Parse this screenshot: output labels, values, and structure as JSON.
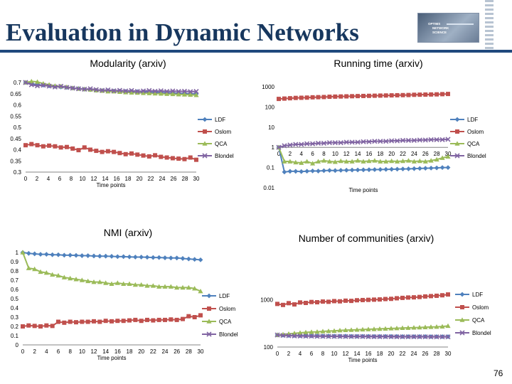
{
  "slide": {
    "title": "Evaluation in Dynamic Networks",
    "page_number": "76",
    "logo_lines": [
      "OPTIMS",
      "NETWORK",
      "SCIENCE"
    ]
  },
  "colors": {
    "LDF": "#4f81bd",
    "Oslom": "#c0504d",
    "QCA": "#9bbb59",
    "Blondel": "#8064a2",
    "title": "#17375e",
    "rule": "#1f497d"
  },
  "legend_labels": [
    "LDF",
    "Oslom",
    "QCA",
    "Blondel"
  ],
  "x_ticks": [
    "0",
    "2",
    "4",
    "6",
    "8",
    "10",
    "12",
    "14",
    "16",
    "18",
    "20",
    "22",
    "24",
    "26",
    "28",
    "30"
  ],
  "chart_data": [
    {
      "type": "line",
      "title": "Modularity (arxiv)",
      "xlabel": "Time points",
      "ylabel": "",
      "x_range": [
        0,
        30
      ],
      "y_scale": "linear",
      "ylim": [
        0.3,
        0.7
      ],
      "y_ticks": [
        "0.7",
        "0.65",
        "0.6",
        "0.55",
        "0.5",
        "0.45",
        "0.4",
        "0.35",
        "0.3"
      ],
      "y_tick_values": [
        0.7,
        0.65,
        0.6,
        0.55,
        0.5,
        0.45,
        0.4,
        0.35,
        0.3
      ],
      "series": [
        {
          "name": "LDF",
          "values": [
            0.7,
            0.695,
            0.69,
            0.688,
            0.685,
            0.683,
            0.68,
            0.678,
            0.675,
            0.673,
            0.67,
            0.668,
            0.665,
            0.664,
            0.663,
            0.662,
            0.661,
            0.66,
            0.66,
            0.659,
            0.658,
            0.657,
            0.656,
            0.655,
            0.654,
            0.653,
            0.652,
            0.651,
            0.65,
            0.649
          ]
        },
        {
          "name": "Oslom",
          "values": [
            0.42,
            0.425,
            0.42,
            0.415,
            0.418,
            0.415,
            0.41,
            0.412,
            0.405,
            0.398,
            0.41,
            0.4,
            0.395,
            0.39,
            0.393,
            0.39,
            0.385,
            0.38,
            0.383,
            0.378,
            0.374,
            0.37,
            0.375,
            0.368,
            0.365,
            0.362,
            0.36,
            0.358,
            0.365,
            0.355
          ]
        },
        {
          "name": "QCA",
          "values": [
            0.7,
            0.705,
            0.703,
            0.695,
            0.69,
            0.685,
            0.683,
            0.68,
            0.675,
            0.672,
            0.67,
            0.668,
            0.665,
            0.663,
            0.66,
            0.66,
            0.658,
            0.656,
            0.655,
            0.654,
            0.653,
            0.652,
            0.651,
            0.65,
            0.649,
            0.648,
            0.647,
            0.646,
            0.645,
            0.644
          ]
        },
        {
          "name": "Blondel",
          "values": [
            0.7,
            0.69,
            0.685,
            0.688,
            0.684,
            0.68,
            0.683,
            0.678,
            0.675,
            0.672,
            0.67,
            0.672,
            0.668,
            0.665,
            0.667,
            0.663,
            0.665,
            0.662,
            0.664,
            0.66,
            0.662,
            0.664,
            0.661,
            0.663,
            0.66,
            0.662,
            0.66,
            0.661,
            0.659,
            0.66
          ]
        }
      ]
    },
    {
      "type": "line",
      "title": "Running time (arxiv)",
      "xlabel": "Time points",
      "ylabel": "",
      "x_range": [
        0,
        30
      ],
      "y_scale": "log",
      "ylim": [
        0.01,
        1000
      ],
      "y_ticks": [
        "1000",
        "100",
        "10",
        "1",
        "0.1",
        "0.01"
      ],
      "y_tick_values": [
        1000,
        100,
        10,
        1,
        0.1,
        0.01
      ],
      "series": [
        {
          "name": "LDF",
          "values": [
            1,
            0.06,
            0.065,
            0.065,
            0.063,
            0.066,
            0.068,
            0.067,
            0.07,
            0.072,
            0.071,
            0.073,
            0.074,
            0.075,
            0.076,
            0.077,
            0.078,
            0.079,
            0.08,
            0.081,
            0.082,
            0.083,
            0.085,
            0.086,
            0.088,
            0.09,
            0.092,
            0.094,
            0.096,
            0.1,
            0.1
          ]
        },
        {
          "name": "Oslom",
          "values": [
            250,
            260,
            270,
            280,
            285,
            290,
            300,
            305,
            310,
            320,
            325,
            330,
            335,
            340,
            345,
            350,
            355,
            360,
            365,
            370,
            375,
            380,
            385,
            390,
            400,
            405,
            410,
            415,
            420,
            430,
            440
          ]
        },
        {
          "name": "QCA",
          "values": [
            1,
            0.2,
            0.2,
            0.18,
            0.17,
            0.2,
            0.16,
            0.2,
            0.22,
            0.2,
            0.19,
            0.21,
            0.2,
            0.2,
            0.22,
            0.2,
            0.21,
            0.22,
            0.2,
            0.2,
            0.21,
            0.2,
            0.21,
            0.22,
            0.2,
            0.21,
            0.2,
            0.22,
            0.25,
            0.3,
            0.35
          ]
        },
        {
          "name": "Blondel",
          "values": [
            1,
            1.2,
            1.3,
            1.4,
            1.4,
            1.5,
            1.5,
            1.6,
            1.6,
            1.7,
            1.7,
            1.7,
            1.8,
            1.8,
            1.8,
            1.9,
            1.9,
            2.0,
            2.0,
            2.0,
            2.1,
            2.1,
            2.2,
            2.2,
            2.2,
            2.3,
            2.3,
            2.4,
            2.4,
            2.4,
            2.5
          ]
        }
      ]
    },
    {
      "type": "line",
      "title": "NMI (arxiv)",
      "xlabel": "Time points",
      "ylabel": "",
      "x_range": [
        0,
        30
      ],
      "y_scale": "linear",
      "ylim": [
        0,
        1
      ],
      "y_ticks": [
        "1",
        "0.9",
        "0.8",
        "0.7",
        "0.6",
        "0.5",
        "0.4",
        "0.3",
        "0.2",
        "0.1",
        "0"
      ],
      "y_tick_values": [
        1,
        0.9,
        0.8,
        0.7,
        0.6,
        0.5,
        0.4,
        0.3,
        0.2,
        0.1,
        0
      ],
      "series": [
        {
          "name": "LDF",
          "values": [
            1,
            0.99,
            0.985,
            0.98,
            0.98,
            0.975,
            0.975,
            0.97,
            0.97,
            0.968,
            0.965,
            0.965,
            0.962,
            0.96,
            0.96,
            0.958,
            0.955,
            0.955,
            0.952,
            0.95,
            0.95,
            0.948,
            0.945,
            0.945,
            0.942,
            0.94,
            0.94,
            0.935,
            0.93,
            0.925,
            0.92
          ]
        },
        {
          "name": "Oslom",
          "values": [
            0.2,
            0.21,
            0.205,
            0.2,
            0.21,
            0.205,
            0.25,
            0.24,
            0.25,
            0.245,
            0.25,
            0.25,
            0.255,
            0.25,
            0.26,
            0.255,
            0.26,
            0.26,
            0.265,
            0.27,
            0.26,
            0.27,
            0.265,
            0.27,
            0.27,
            0.275,
            0.27,
            0.28,
            0.31,
            0.3,
            0.32
          ]
        },
        {
          "name": "QCA",
          "values": [
            1,
            0.83,
            0.82,
            0.79,
            0.78,
            0.76,
            0.75,
            0.73,
            0.72,
            0.71,
            0.7,
            0.69,
            0.68,
            0.68,
            0.67,
            0.66,
            0.67,
            0.66,
            0.66,
            0.65,
            0.65,
            0.64,
            0.64,
            0.63,
            0.63,
            0.63,
            0.62,
            0.62,
            0.62,
            0.61,
            0.58
          ]
        }
      ]
    },
    {
      "type": "line",
      "title": "Number of communities (arxiv)",
      "xlabel": "Time points",
      "ylabel": "",
      "x_range": [
        0,
        30
      ],
      "y_scale": "log",
      "ylim": [
        100,
        3000
      ],
      "y_ticks": [
        "1000",
        "100"
      ],
      "y_tick_values": [
        1000,
        100
      ],
      "series": [
        {
          "name": "LDF",
          "values": [
            180,
            178,
            176,
            175,
            174,
            173,
            172,
            172,
            171,
            171,
            170,
            170,
            170,
            169,
            169,
            169,
            169,
            168,
            168,
            168,
            168,
            168,
            167,
            167,
            167,
            167,
            167,
            166,
            166,
            166,
            166
          ]
        },
        {
          "name": "Oslom",
          "values": [
            820,
            780,
            850,
            800,
            880,
            860,
            900,
            890,
            920,
            910,
            940,
            930,
            960,
            950,
            980,
            990,
            1000,
            1010,
            1020,
            1040,
            1050,
            1080,
            1100,
            1120,
            1130,
            1150,
            1180,
            1200,
            1220,
            1250,
            1300
          ]
        },
        {
          "name": "QCA",
          "values": [
            180,
            185,
            190,
            195,
            200,
            205,
            208,
            210,
            215,
            218,
            220,
            225,
            228,
            230,
            232,
            235,
            238,
            240,
            243,
            245,
            248,
            250,
            253,
            255,
            258,
            260,
            263,
            266,
            268,
            272,
            280
          ]
        },
        {
          "name": "Blondel",
          "values": [
            180,
            176,
            174,
            172,
            171,
            170,
            170,
            169,
            169,
            168,
            168,
            168,
            167,
            167,
            167,
            167,
            166,
            166,
            166,
            166,
            166,
            165,
            165,
            165,
            165,
            165,
            165,
            164,
            164,
            164,
            164
          ]
        }
      ]
    }
  ]
}
